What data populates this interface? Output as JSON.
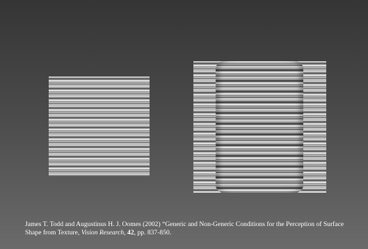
{
  "citation": {
    "authors": "James T. Todd and Augustinus H. J. Oomes (2002)",
    "title": "“Generic and Non-Generic Conditions for the Perception of Surface Shape from Texture,",
    "journal": "Vision Research",
    "separator": ",",
    "volume": "42",
    "pages": ", pp. 837-850."
  }
}
